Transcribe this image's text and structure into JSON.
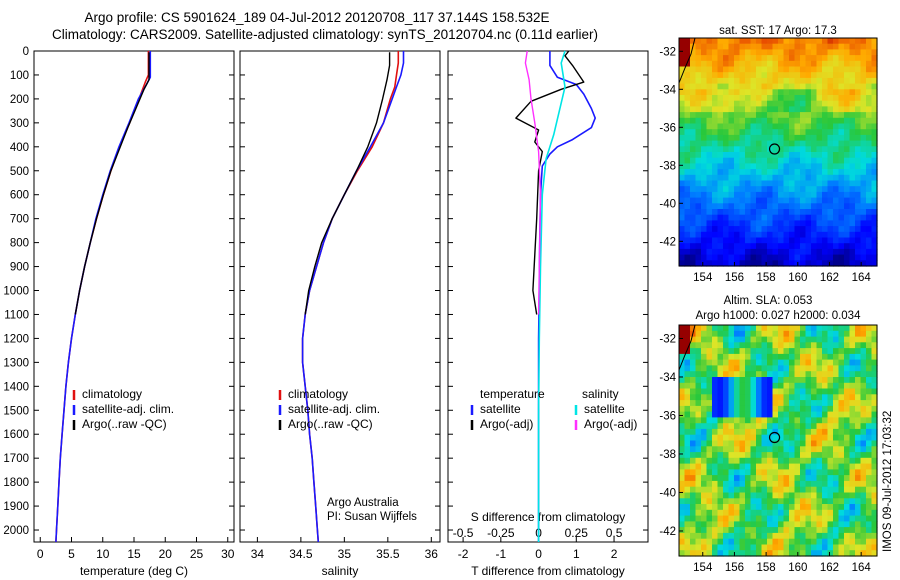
{
  "header": {
    "line1": "Argo profile: CS 5901624_189 04-Jul-2012 20120708_117 37.144S 158.532E",
    "line2": "Climatology: CARS2009. Satellite-adjusted climatology: synTS_20120704.nc (0.11d earlier)"
  },
  "colors": {
    "climatology": "#e01010",
    "satellite": "#1a1aff",
    "argo": "#000000",
    "sal_satellite": "#00e5e5",
    "sal_argo": "#ff30ff"
  },
  "chart_data": [
    {
      "type": "line",
      "id": "temperature-profile",
      "xlabel": "temperature (deg C)",
      "ylabel": "",
      "xlim": [
        -1,
        31
      ],
      "ylim": [
        2050,
        0
      ],
      "xticks": [
        0,
        5,
        10,
        15,
        20,
        25,
        30
      ],
      "yticks": [
        0,
        100,
        200,
        300,
        400,
        500,
        600,
        700,
        800,
        900,
        1000,
        1100,
        1200,
        1300,
        1400,
        1500,
        1600,
        1700,
        1800,
        1900,
        2000
      ],
      "grid": false,
      "legend": {
        "position": "lower-center",
        "entries": [
          "climatology",
          "satellite-adj. clim.",
          "Argo(..raw -QC)"
        ]
      },
      "series": [
        {
          "name": "climatology",
          "color_key": "climatology",
          "width": 1.6,
          "points": [
            [
              17.3,
              0
            ],
            [
              17.3,
              100
            ],
            [
              16.8,
              130
            ],
            [
              15.8,
              200
            ],
            [
              14.3,
              300
            ],
            [
              12.7,
              400
            ],
            [
              11.3,
              500
            ],
            [
              10.1,
              600
            ],
            [
              9.0,
              700
            ],
            [
              8.0,
              800
            ],
            [
              7.1,
              900
            ],
            [
              6.3,
              1000
            ],
            [
              5.6,
              1100
            ],
            [
              5.0,
              1200
            ],
            [
              4.5,
              1300
            ],
            [
              4.1,
              1400
            ],
            [
              3.8,
              1500
            ],
            [
              3.5,
              1600
            ],
            [
              3.2,
              1700
            ],
            [
              3.0,
              1800
            ],
            [
              2.8,
              1900
            ],
            [
              2.6,
              2000
            ],
            [
              2.5,
              2050
            ]
          ]
        },
        {
          "name": "satellite-adj. clim.",
          "color_key": "satellite",
          "width": 1.6,
          "points": [
            [
              17.6,
              0
            ],
            [
              17.6,
              110
            ],
            [
              17.0,
              140
            ],
            [
              15.7,
              200
            ],
            [
              14.2,
              300
            ],
            [
              12.6,
              400
            ],
            [
              11.2,
              500
            ],
            [
              10.0,
              600
            ],
            [
              8.9,
              700
            ],
            [
              8.0,
              800
            ],
            [
              7.1,
              900
            ],
            [
              6.3,
              1000
            ],
            [
              5.6,
              1100
            ],
            [
              5.0,
              1200
            ],
            [
              4.5,
              1300
            ],
            [
              4.1,
              1400
            ],
            [
              3.8,
              1500
            ],
            [
              3.5,
              1600
            ],
            [
              3.2,
              1700
            ],
            [
              3.0,
              1800
            ],
            [
              2.8,
              1900
            ],
            [
              2.6,
              2000
            ],
            [
              2.5,
              2050
            ]
          ]
        },
        {
          "name": "Argo(..raw -QC)",
          "color_key": "argo",
          "width": 1.4,
          "points": [
            [
              17.4,
              5
            ],
            [
              17.4,
              120
            ],
            [
              16.6,
              160
            ],
            [
              15.3,
              240
            ],
            [
              14.0,
              320
            ],
            [
              12.8,
              400
            ],
            [
              11.3,
              500
            ],
            [
              10.1,
              600
            ],
            [
              9.0,
              700
            ],
            [
              8.0,
              800
            ],
            [
              7.1,
              900
            ],
            [
              6.3,
              1000
            ],
            [
              5.6,
              1100
            ]
          ]
        }
      ]
    },
    {
      "type": "line",
      "id": "salinity-profile",
      "xlabel": "salinity",
      "ylabel": "",
      "xlim": [
        33.8,
        36.1
      ],
      "ylim": [
        2050,
        0
      ],
      "xticks": [
        34,
        34.5,
        35,
        35.5,
        36
      ],
      "grid": false,
      "legend": {
        "position": "lower-center",
        "entries": [
          "climatology",
          "satellite-adj. clim.",
          "Argo(..raw -QC)"
        ]
      },
      "annotations": [
        "Argo Australia",
        "PI: Susan Wijffels"
      ],
      "series": [
        {
          "name": "climatology",
          "color_key": "climatology",
          "width": 1.6,
          "points": [
            [
              35.62,
              0
            ],
            [
              35.62,
              50
            ],
            [
              35.6,
              100
            ],
            [
              35.58,
              150
            ],
            [
              35.53,
              200
            ],
            [
              35.45,
              300
            ],
            [
              35.32,
              400
            ],
            [
              35.15,
              500
            ],
            [
              35.0,
              600
            ],
            [
              34.86,
              700
            ],
            [
              34.76,
              800
            ],
            [
              34.68,
              900
            ],
            [
              34.6,
              1000
            ],
            [
              34.55,
              1100
            ],
            [
              34.52,
              1200
            ],
            [
              34.52,
              1300
            ],
            [
              34.55,
              1400
            ],
            [
              34.58,
              1500
            ],
            [
              34.6,
              1600
            ],
            [
              34.63,
              1700
            ],
            [
              34.65,
              1800
            ],
            [
              34.67,
              1900
            ],
            [
              34.69,
              2000
            ],
            [
              34.7,
              2050
            ]
          ]
        },
        {
          "name": "satellite-adj. clim.",
          "color_key": "satellite",
          "width": 1.6,
          "points": [
            [
              35.68,
              0
            ],
            [
              35.68,
              50
            ],
            [
              35.65,
              100
            ],
            [
              35.6,
              150
            ],
            [
              35.55,
              200
            ],
            [
              35.45,
              300
            ],
            [
              35.3,
              400
            ],
            [
              35.14,
              500
            ],
            [
              35.0,
              600
            ],
            [
              34.86,
              700
            ],
            [
              34.76,
              800
            ],
            [
              34.68,
              900
            ],
            [
              34.6,
              1000
            ],
            [
              34.55,
              1100
            ],
            [
              34.52,
              1200
            ],
            [
              34.52,
              1300
            ],
            [
              34.55,
              1400
            ],
            [
              34.58,
              1500
            ],
            [
              34.6,
              1600
            ],
            [
              34.63,
              1700
            ],
            [
              34.65,
              1800
            ],
            [
              34.67,
              1900
            ],
            [
              34.69,
              2000
            ],
            [
              34.7,
              2050
            ]
          ]
        },
        {
          "name": "Argo(..raw -QC)",
          "color_key": "argo",
          "width": 1.4,
          "points": [
            [
              35.52,
              5
            ],
            [
              35.52,
              60
            ],
            [
              35.49,
              120
            ],
            [
              35.44,
              200
            ],
            [
              35.37,
              300
            ],
            [
              35.27,
              400
            ],
            [
              35.14,
              500
            ],
            [
              35.0,
              600
            ],
            [
              34.86,
              700
            ],
            [
              34.74,
              800
            ],
            [
              34.66,
              900
            ],
            [
              34.59,
              1000
            ],
            [
              34.55,
              1100
            ]
          ]
        }
      ]
    },
    {
      "type": "line",
      "id": "difference-profile",
      "xlabel": "T difference from climatology",
      "xlabel_top": "S difference from climatology",
      "ylabel": "",
      "xlim": [
        -2.4,
        2.9
      ],
      "ylim": [
        2050,
        0
      ],
      "xticks": [
        -2,
        -1,
        0,
        1,
        2
      ],
      "xticks_top": [
        "-0.5",
        "-0.25",
        "0",
        "0.25",
        "0.5"
      ],
      "xticks_top_positions": [
        -2,
        -1,
        0,
        1,
        2
      ],
      "grid": false,
      "legend": {
        "position": "lower-center",
        "headers": [
          "temperature",
          "salinity"
        ],
        "entries": [
          "satellite",
          "Argo(-adj)",
          "satellite",
          "Argo(-adj)"
        ]
      },
      "series": [
        {
          "name": "satellite",
          "color_key": "satellite",
          "width": 1.6,
          "points": [
            [
              0.3,
              0
            ],
            [
              0.3,
              60
            ],
            [
              0.5,
              110
            ],
            [
              1.0,
              140
            ],
            [
              1.2,
              180
            ],
            [
              1.4,
              240
            ],
            [
              1.5,
              280
            ],
            [
              1.4,
              320
            ],
            [
              0.9,
              370
            ],
            [
              0.5,
              400
            ],
            [
              0.3,
              430
            ],
            [
              0.1,
              480
            ],
            [
              0.05,
              600
            ],
            [
              0.03,
              800
            ],
            [
              0.02,
              1000
            ],
            [
              0.0,
              1200
            ],
            [
              0.0,
              1600
            ],
            [
              0.0,
              2050
            ]
          ]
        },
        {
          "name": "Argo(-adj)",
          "color_key": "argo",
          "width": 1.4,
          "points": [
            [
              0.8,
              0
            ],
            [
              0.7,
              20
            ],
            [
              0.9,
              60
            ],
            [
              1.2,
              130
            ],
            [
              0.6,
              160
            ],
            [
              -0.2,
              210
            ],
            [
              -0.6,
              280
            ],
            [
              0.0,
              330
            ],
            [
              -0.1,
              380
            ],
            [
              0.1,
              420
            ],
            [
              0.0,
              500
            ],
            [
              -0.05,
              700
            ],
            [
              -0.1,
              850
            ],
            [
              -0.15,
              1000
            ],
            [
              -0.05,
              1100
            ]
          ]
        },
        {
          "name": "satellite",
          "color_key": "sal_satellite",
          "width": 1.6,
          "points": [
            [
              0.7,
              0
            ],
            [
              0.6,
              50
            ],
            [
              0.7,
              150
            ],
            [
              0.4,
              350
            ],
            [
              0.2,
              450
            ],
            [
              0.1,
              600
            ],
            [
              0.05,
              900
            ],
            [
              0.02,
              1200
            ],
            [
              0.0,
              1500
            ],
            [
              0.0,
              2050
            ]
          ]
        },
        {
          "name": "Argo(-adj)",
          "color_key": "sal_argo",
          "width": 1.4,
          "points": [
            [
              -0.3,
              0
            ],
            [
              -0.35,
              50
            ],
            [
              -0.25,
              120
            ],
            [
              -0.2,
              200
            ],
            [
              -0.1,
              300
            ],
            [
              0.0,
              420
            ],
            [
              0.05,
              600
            ],
            [
              0.02,
              900
            ],
            [
              0.0,
              1100
            ]
          ]
        }
      ]
    },
    {
      "type": "heatmap",
      "id": "sst-map",
      "title": "sat. SST: 17 Argo: 17.3",
      "xlim": [
        152.5,
        165
      ],
      "ylim": [
        -43.3,
        -31.3
      ],
      "xticks": [
        154,
        156,
        158,
        160,
        162,
        164
      ],
      "yticks": [
        -32,
        -34,
        -36,
        -38,
        -40,
        -42
      ],
      "marker": [
        158.532,
        -37.144
      ],
      "field": "warm-north-cold-south"
    },
    {
      "type": "heatmap",
      "id": "sla-map",
      "title": "Altim. SLA: 0.053",
      "subtitle": "Argo h1000: 0.027 h2000: 0.034",
      "xlim": [
        152.5,
        165
      ],
      "ylim": [
        -43.3,
        -31.3
      ],
      "xticks": [
        154,
        156,
        158,
        160,
        162,
        164
      ],
      "yticks": [
        -32,
        -34,
        -36,
        -38,
        -40,
        -42
      ],
      "marker": [
        158.532,
        -37.144
      ],
      "field": "eddies",
      "side_label": "IMOS 09-Jul-2012 17:03:32"
    }
  ]
}
